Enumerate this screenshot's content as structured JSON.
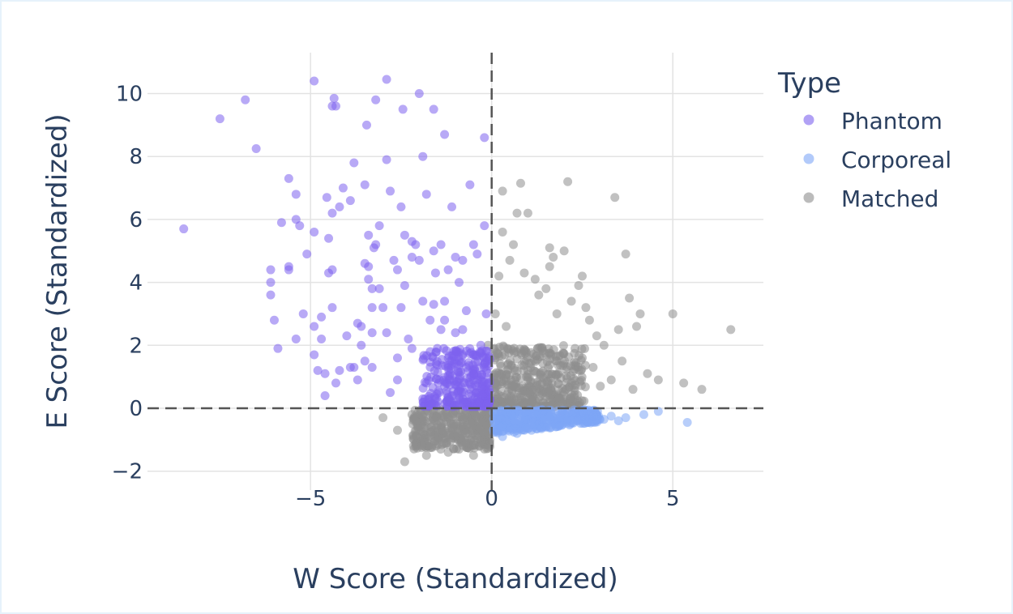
{
  "chart_data": {
    "type": "scatter",
    "xlabel": "W Score (Standardized)",
    "ylabel": "E Score (Standardized)",
    "xlim": [
      -9.5,
      7.5
    ],
    "ylim": [
      -2.6,
      11.3
    ],
    "x_ticks": [
      -5,
      0,
      5
    ],
    "y_ticks": [
      -2,
      0,
      2,
      4,
      6,
      8,
      10
    ],
    "x_tick_labels": [
      "−5",
      "0",
      "5"
    ],
    "y_tick_labels": [
      "−2",
      "0",
      "2",
      "4",
      "6",
      "8",
      "10"
    ],
    "grid": true,
    "reference_lines": {
      "x": 0,
      "y": 0,
      "style": "dashed"
    },
    "legend": {
      "title": "Type",
      "placement": "right",
      "entries": [
        "Phantom",
        "Corporeal",
        "Matched"
      ]
    },
    "series": [
      {
        "name": "Phantom",
        "color": "#7d63ee",
        "points": [
          [
            -8.5,
            5.7
          ],
          [
            -7.5,
            9.2
          ],
          [
            -6.8,
            9.8
          ],
          [
            -6.5,
            8.25
          ],
          [
            -6.1,
            4.4
          ],
          [
            -6.1,
            4.0
          ],
          [
            -6.1,
            3.6
          ],
          [
            -6.0,
            2.8
          ],
          [
            -5.9,
            1.9
          ],
          [
            -5.8,
            5.9
          ],
          [
            -5.6,
            7.3
          ],
          [
            -5.6,
            4.5
          ],
          [
            -5.6,
            4.4
          ],
          [
            -5.4,
            6.8
          ],
          [
            -5.4,
            6.0
          ],
          [
            -5.3,
            5.8
          ],
          [
            -5.4,
            2.2
          ],
          [
            -5.2,
            3.0
          ],
          [
            -5.1,
            4.9
          ],
          [
            -4.9,
            10.4
          ],
          [
            -4.9,
            2.6
          ],
          [
            -4.9,
            1.7
          ],
          [
            -4.9,
            5.6
          ],
          [
            -4.8,
            1.2
          ],
          [
            -4.7,
            2.9
          ],
          [
            -4.7,
            2.2
          ],
          [
            -4.6,
            0.4
          ],
          [
            -4.6,
            1.1
          ],
          [
            -4.55,
            6.7
          ],
          [
            -4.5,
            5.4
          ],
          [
            -4.5,
            4.3
          ],
          [
            -4.4,
            9.6
          ],
          [
            -4.35,
            9.85
          ],
          [
            -4.3,
            9.6
          ],
          [
            -4.4,
            6.2
          ],
          [
            -4.4,
            4.4
          ],
          [
            -4.4,
            3.2
          ],
          [
            -4.3,
            0.8
          ],
          [
            -4.2,
            1.2
          ],
          [
            -4.2,
            6.4
          ],
          [
            -4.1,
            7.0
          ],
          [
            -4.0,
            2.3
          ],
          [
            -3.9,
            6.6
          ],
          [
            -3.8,
            7.8
          ],
          [
            -3.8,
            1.3
          ],
          [
            -3.7,
            0.9
          ],
          [
            -3.7,
            2.7
          ],
          [
            -3.6,
            2.6
          ],
          [
            -3.6,
            2.0
          ],
          [
            -3.5,
            7.1
          ],
          [
            -3.5,
            4.6
          ],
          [
            -3.5,
            1.5
          ],
          [
            -3.45,
            9.0
          ],
          [
            -3.4,
            5.5
          ],
          [
            -3.4,
            4.5
          ],
          [
            -3.4,
            4.1
          ],
          [
            -3.3,
            3.8
          ],
          [
            -3.3,
            3.2
          ],
          [
            -3.3,
            2.4
          ],
          [
            -3.3,
            1.3
          ],
          [
            -3.25,
            5.1
          ],
          [
            -3.2,
            9.8
          ],
          [
            -3.2,
            5.2
          ],
          [
            -3.1,
            5.8
          ],
          [
            -3.1,
            3.8
          ],
          [
            -3.0,
            3.2
          ],
          [
            -2.9,
            10.45
          ],
          [
            -2.9,
            7.9
          ],
          [
            -2.9,
            2.4
          ],
          [
            -2.8,
            6.9
          ],
          [
            -2.8,
            0.5
          ],
          [
            -2.7,
            4.7
          ],
          [
            -2.6,
            4.4
          ],
          [
            -2.6,
            1.6
          ],
          [
            -2.5,
            6.4
          ],
          [
            -2.5,
            3.2
          ],
          [
            -2.45,
            9.5
          ],
          [
            -2.4,
            3.9
          ],
          [
            -2.4,
            5.5
          ],
          [
            -2.3,
            2.2
          ],
          [
            -2.2,
            5.3
          ],
          [
            -2.2,
            4.8
          ],
          [
            -2.2,
            1.9
          ],
          [
            -2.1,
            5.2
          ],
          [
            -2.0,
            10.0
          ],
          [
            -2.0,
            4.7
          ],
          [
            -1.9,
            8.0
          ],
          [
            -1.9,
            3.4
          ],
          [
            -1.9,
            0.3
          ],
          [
            -1.8,
            6.8
          ],
          [
            -1.7,
            2.8
          ],
          [
            -1.6,
            9.5
          ],
          [
            -1.6,
            5.0
          ],
          [
            -1.55,
            4.3
          ],
          [
            -1.4,
            5.2
          ],
          [
            -1.3,
            8.7
          ],
          [
            -1.3,
            3.4
          ],
          [
            -1.3,
            2.8
          ],
          [
            -1.2,
            4.4
          ],
          [
            -1.1,
            6.4
          ],
          [
            -1.0,
            4.8
          ],
          [
            -0.9,
            4.0
          ],
          [
            -0.8,
            4.7
          ],
          [
            -0.7,
            3.1
          ],
          [
            -0.6,
            7.1
          ],
          [
            -0.5,
            5.2
          ],
          [
            -0.4,
            4.9
          ],
          [
            -0.2,
            8.6
          ],
          [
            -0.2,
            5.8
          ],
          [
            -0.15,
            3.0
          ],
          [
            -0.3,
            2.0
          ],
          [
            -1.6,
            3.3
          ],
          [
            -1.4,
            2.5
          ],
          [
            -2.6,
            0.9
          ],
          [
            -3.9,
            1.3
          ],
          [
            -1.0,
            2.4
          ],
          [
            -0.8,
            2.5
          ],
          [
            -1.8,
            0.8
          ],
          [
            -1.5,
            1.9
          ],
          [
            -1.7,
            0.2
          ],
          [
            -1.2,
            1.6
          ],
          [
            -1.1,
            0.4
          ],
          [
            -0.9,
            0.9
          ],
          [
            -0.7,
            1.3
          ],
          [
            -0.6,
            0.2
          ],
          [
            -0.5,
            1.1
          ],
          [
            -0.4,
            0.5
          ],
          [
            -0.3,
            0.9
          ],
          [
            -0.2,
            1.3
          ],
          [
            -0.1,
            0.3
          ],
          [
            -0.1,
            0.8
          ],
          [
            -0.15,
            1.6
          ],
          [
            -0.3,
            0.15
          ],
          [
            -0.6,
            0.6
          ],
          [
            -0.9,
            1.5
          ],
          [
            -1.3,
            0.7
          ],
          [
            -1.0,
            0.1
          ],
          [
            -0.8,
            0.3
          ],
          [
            -0.45,
            1.7
          ],
          [
            -0.2,
            0.6
          ],
          [
            -0.55,
            0.4
          ],
          [
            -0.75,
            0.8
          ],
          [
            -1.15,
            1.1
          ],
          [
            -1.45,
            0.5
          ]
        ],
        "cluster": {
          "count": 280,
          "x_min": -1.9,
          "x_max": -0.05,
          "y_min": 0.05,
          "y_max": 1.9
        }
      },
      {
        "name": "Corporeal",
        "color": "#7ea6f6",
        "points": [
          [
            5.4,
            -0.45
          ],
          [
            4.6,
            -0.1
          ],
          [
            4.2,
            -0.2
          ],
          [
            3.7,
            -0.3
          ],
          [
            3.5,
            -0.4
          ],
          [
            3.3,
            -0.25
          ],
          [
            3.1,
            -0.35
          ],
          [
            2.9,
            -0.2
          ],
          [
            2.7,
            -0.3
          ],
          [
            2.5,
            -0.4
          ],
          [
            2.3,
            -0.2
          ],
          [
            2.1,
            -0.35
          ],
          [
            1.9,
            -0.5
          ],
          [
            1.7,
            -0.3
          ],
          [
            1.5,
            -0.6
          ],
          [
            1.3,
            -0.4
          ],
          [
            1.1,
            -0.7
          ],
          [
            0.9,
            -0.5
          ],
          [
            0.7,
            -0.8
          ],
          [
            0.5,
            -0.6
          ],
          [
            0.3,
            -0.9
          ],
          [
            0.2,
            -0.4
          ],
          [
            0.1,
            -0.7
          ]
        ],
        "cluster": {
          "count": 320,
          "x_min": 0.05,
          "x_max": 3.0,
          "y_min": -0.85,
          "y_max": -0.05,
          "slope": 0.14
        }
      },
      {
        "name": "Matched",
        "color": "#8e8e8e",
        "points": [
          [
            0.3,
            6.9
          ],
          [
            0.3,
            5.6
          ],
          [
            0.5,
            4.7
          ],
          [
            0.6,
            5.2
          ],
          [
            0.7,
            6.2
          ],
          [
            0.8,
            7.15
          ],
          [
            0.9,
            4.3
          ],
          [
            1.0,
            6.2
          ],
          [
            1.2,
            4.1
          ],
          [
            1.3,
            3.6
          ],
          [
            1.5,
            3.8
          ],
          [
            1.6,
            5.1
          ],
          [
            1.7,
            4.8
          ],
          [
            1.8,
            3.0
          ],
          [
            2.0,
            5.0
          ],
          [
            2.2,
            3.4
          ],
          [
            2.4,
            3.9
          ],
          [
            2.5,
            4.2
          ],
          [
            2.6,
            3.2
          ],
          [
            2.7,
            2.8
          ],
          [
            2.9,
            2.3
          ],
          [
            3.1,
            2.0
          ],
          [
            3.4,
            6.7
          ],
          [
            3.5,
            2.5
          ],
          [
            3.6,
            1.5
          ],
          [
            3.7,
            4.9
          ],
          [
            3.8,
            3.5
          ],
          [
            4.0,
            2.6
          ],
          [
            4.1,
            3.0
          ],
          [
            4.3,
            1.1
          ],
          [
            4.6,
            0.9
          ],
          [
            5.0,
            3.0
          ],
          [
            5.3,
            0.8
          ],
          [
            5.8,
            0.6
          ],
          [
            6.6,
            2.5
          ],
          [
            2.1,
            7.2
          ],
          [
            1.6,
            4.5
          ],
          [
            0.2,
            4.2
          ],
          [
            0.1,
            3.0
          ],
          [
            0.4,
            2.6
          ],
          [
            3.3,
            0.9
          ],
          [
            3.9,
            0.6
          ],
          [
            2.8,
            1.3
          ],
          [
            3.0,
            0.7
          ],
          [
            2.5,
            1.6
          ],
          [
            2.3,
            1.9
          ],
          [
            -0.1,
            2.0
          ],
          [
            -2.4,
            -1.7
          ],
          [
            -1.8,
            -1.5
          ],
          [
            -1.2,
            -1.4
          ],
          [
            -0.9,
            -1.3
          ],
          [
            -0.5,
            -1.5
          ],
          [
            -2.6,
            -0.7
          ],
          [
            -3.0,
            -0.3
          ],
          [
            -2.2,
            -0.2
          ],
          [
            -1.5,
            -0.9
          ],
          [
            -0.7,
            -0.6
          ],
          [
            -0.3,
            -1.1
          ]
        ],
        "cluster_upper": {
          "count": 420,
          "x_min": 0.05,
          "x_max": 2.6,
          "y_min": 0.05,
          "y_max": 2.0
        },
        "cluster_lower": {
          "count": 360,
          "x_min": -2.2,
          "x_max": -0.05,
          "y_min": -1.3,
          "y_max": -0.05
        }
      }
    ]
  }
}
